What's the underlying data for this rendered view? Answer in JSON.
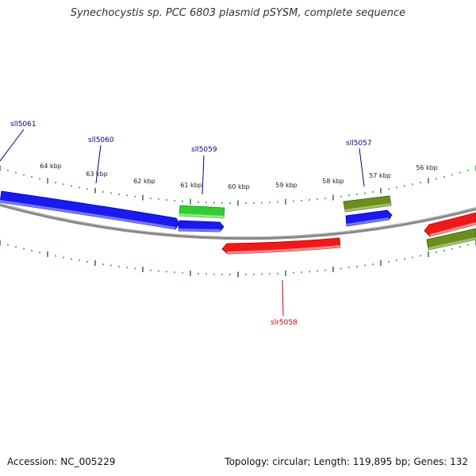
{
  "title": "Synechocystis sp. PCC 6803 plasmid pSYSM, complete sequence",
  "footer": {
    "accession": "Accession: NC_005229",
    "summary": "Topology: circular; Length: 119,895 bp; Genes: 132"
  },
  "colors": {
    "backbone": "#888888",
    "ticks": "#2a8a2a",
    "plus_strand": "#1a1aee",
    "minus_strand": "#ee1a1a",
    "cog_green": "#33cc33",
    "cog_olive": "#6b8e23",
    "label_plus": "#000088",
    "label_minus": "#cc0000"
  },
  "ticks": [
    {
      "label": "64 kbp"
    },
    {
      "label": "63 kbp"
    },
    {
      "label": "62 kbp"
    },
    {
      "label": "61 kbp"
    },
    {
      "label": "60 kbp"
    },
    {
      "label": "59 kbp"
    },
    {
      "label": "58 kbp"
    },
    {
      "label": "57 kbp"
    },
    {
      "label": "56 kbp"
    }
  ],
  "genes": [
    {
      "id": "sll5061",
      "label": "sll5061",
      "strand": "minus"
    },
    {
      "id": "sll5060",
      "label": "sll5060",
      "strand": "minus"
    },
    {
      "id": "sll5059",
      "label": "sll5059",
      "strand": "minus"
    },
    {
      "id": "slr5058",
      "label": "slr5058",
      "strand": "plus"
    },
    {
      "id": "sll5057",
      "label": "sll5057",
      "strand": "minus"
    }
  ]
}
